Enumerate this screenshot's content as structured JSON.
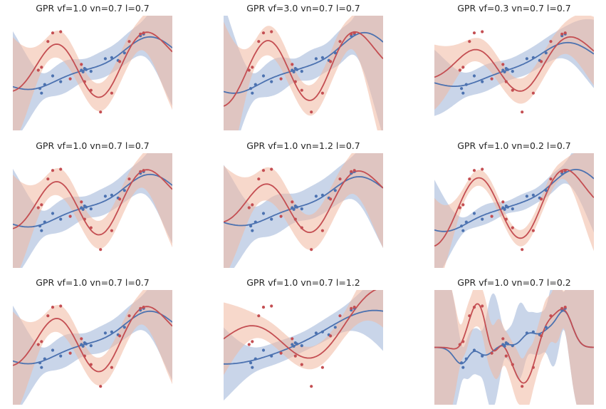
{
  "figure": {
    "colors": {
      "blue_line": "#4c72b0",
      "blue_band": "#a8bcdc",
      "red_line": "#c44e52",
      "red_band": "#f1b8a0",
      "overlap": "#c9b7b5"
    }
  },
  "chart_data": [
    {
      "type": "line",
      "title": "GPR vf=1.0 vn=0.7 l=0.7",
      "params": {
        "vf": 1.0,
        "vn": 0.7,
        "l": 0.7
      },
      "grid": false
    },
    {
      "type": "line",
      "title": "GPR vf=3.0 vn=0.7 l=0.7",
      "params": {
        "vf": 3.0,
        "vn": 0.7,
        "l": 0.7
      },
      "grid": false
    },
    {
      "type": "line",
      "title": "GPR vf=0.3 vn=0.7 l=0.7",
      "params": {
        "vf": 0.3,
        "vn": 0.7,
        "l": 0.7
      },
      "grid": false
    },
    {
      "type": "line",
      "title": "GPR vf=1.0 vn=0.7 l=0.7",
      "params": {
        "vf": 1.0,
        "vn": 0.7,
        "l": 0.7
      },
      "grid": false
    },
    {
      "type": "line",
      "title": "GPR vf=1.0 vn=1.2 l=0.7",
      "params": {
        "vf": 1.0,
        "vn": 1.2,
        "l": 0.7
      },
      "grid": false
    },
    {
      "type": "line",
      "title": "GPR vf=1.0 vn=0.2 l=0.7",
      "params": {
        "vf": 1.0,
        "vn": 0.2,
        "l": 0.7
      },
      "grid": false
    },
    {
      "type": "line",
      "title": "GPR vf=1.0 vn=0.7 l=0.7",
      "params": {
        "vf": 1.0,
        "vn": 0.7,
        "l": 0.7
      },
      "grid": false
    },
    {
      "type": "line",
      "title": "GPR vf=1.0 vn=0.7 l=1.2",
      "params": {
        "vf": 1.0,
        "vn": 0.7,
        "l": 1.2
      },
      "grid": false
    },
    {
      "type": "line",
      "title": "GPR vf=1.0 vn=0.7 l=0.2",
      "params": {
        "vf": 1.0,
        "vn": 0.7,
        "l": 0.2
      },
      "grid": false
    }
  ],
  "observations": {
    "blue": {
      "x": [
        0.17,
        0.18,
        0.2,
        0.25,
        0.3,
        0.43,
        0.44,
        0.45,
        0.46,
        0.49,
        0.58,
        0.62,
        0.66,
        0.7,
        0.8,
        0.82
      ],
      "y": [
        -0.27,
        -0.35,
        -0.2,
        -0.05,
        -0.15,
        0.05,
        0.02,
        0.08,
        0.06,
        0.03,
        0.25,
        0.27,
        0.22,
        0.35,
        0.65,
        0.68
      ]
    },
    "red": {
      "x": [
        0.16,
        0.18,
        0.22,
        0.25,
        0.3,
        0.36,
        0.43,
        0.45,
        0.49,
        0.55,
        0.62,
        0.67,
        0.73,
        0.8,
        0.82
      ],
      "y": [
        0.05,
        0.1,
        0.55,
        0.7,
        0.72,
        -0.1,
        0.15,
        -0.15,
        -0.3,
        -0.68,
        -0.35,
        0.2,
        0.55,
        0.68,
        0.7
      ]
    }
  }
}
